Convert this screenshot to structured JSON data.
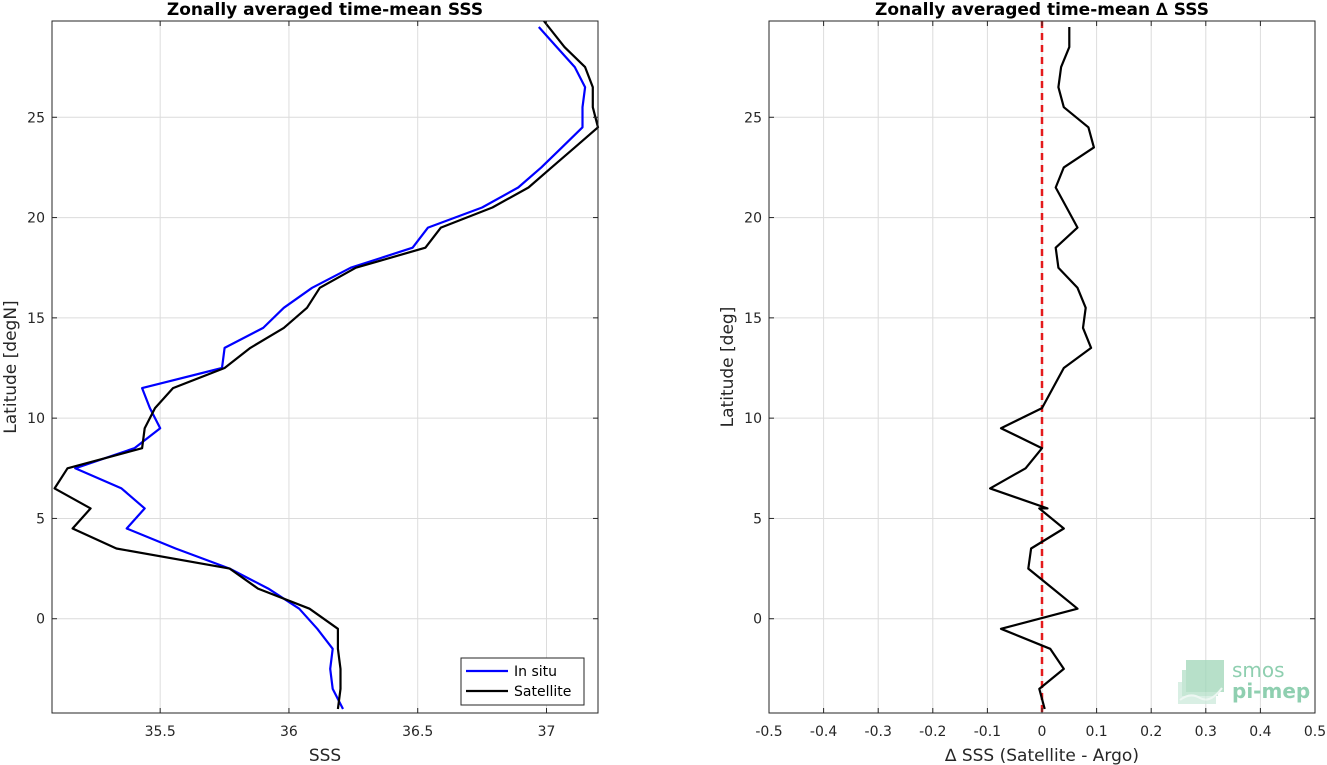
{
  "chart_data": [
    {
      "type": "line",
      "title": "Zonally averaged time-mean SSS",
      "xlabel": "SSS",
      "ylabel": "Latitude [degN]",
      "xlim": [
        35.08,
        37.2
      ],
      "ylim": [
        -4.7,
        29.8
      ],
      "xticks": [
        35.5,
        36,
        36.5,
        37
      ],
      "xtick_labels": [
        "35.5",
        "36",
        "36.5",
        "37"
      ],
      "yticks": [
        0,
        5,
        10,
        15,
        20,
        25
      ],
      "ytick_labels": [
        "0",
        "5",
        "10",
        "15",
        "20",
        "25"
      ],
      "grid": true,
      "legend_position": "bottom-right",
      "series": [
        {
          "name": "In situ",
          "color": "#0000ff",
          "points": [
            [
              36.21,
              -4.5
            ],
            [
              36.17,
              -3.5
            ],
            [
              36.16,
              -2.5
            ],
            [
              36.17,
              -1.5
            ],
            [
              36.11,
              -0.5
            ],
            [
              36.04,
              0.5
            ],
            [
              35.92,
              1.5
            ],
            [
              35.77,
              2.5
            ],
            [
              35.56,
              3.5
            ],
            [
              35.37,
              4.5
            ],
            [
              35.44,
              5.5
            ],
            [
              35.35,
              6.5
            ],
            [
              35.17,
              7.5
            ],
            [
              35.4,
              8.5
            ],
            [
              35.5,
              9.5
            ],
            [
              35.46,
              10.5
            ],
            [
              35.43,
              11.5
            ],
            [
              35.74,
              12.5
            ],
            [
              35.75,
              13.5
            ],
            [
              35.9,
              14.5
            ],
            [
              35.98,
              15.5
            ],
            [
              36.09,
              16.5
            ],
            [
              36.24,
              17.5
            ],
            [
              36.48,
              18.5
            ],
            [
              36.54,
              19.5
            ],
            [
              36.75,
              20.5
            ],
            [
              36.89,
              21.5
            ],
            [
              36.98,
              22.5
            ],
            [
              37.06,
              23.5
            ],
            [
              37.14,
              24.5
            ],
            [
              37.14,
              25.5
            ],
            [
              37.15,
              26.5
            ],
            [
              37.11,
              27.5
            ],
            [
              37.04,
              28.5
            ],
            [
              36.97,
              29.5
            ]
          ]
        },
        {
          "name": "Satellite",
          "color": "#000000",
          "points": [
            [
              36.19,
              -4.5
            ],
            [
              36.2,
              -3.5
            ],
            [
              36.2,
              -2.5
            ],
            [
              36.19,
              -1.5
            ],
            [
              36.19,
              -0.5
            ],
            [
              36.08,
              0.5
            ],
            [
              35.88,
              1.5
            ],
            [
              35.77,
              2.5
            ],
            [
              35.33,
              3.5
            ],
            [
              35.16,
              4.5
            ],
            [
              35.23,
              5.5
            ],
            [
              35.09,
              6.5
            ],
            [
              35.14,
              7.5
            ],
            [
              35.43,
              8.5
            ],
            [
              35.44,
              9.5
            ],
            [
              35.48,
              10.5
            ],
            [
              35.55,
              11.5
            ],
            [
              35.75,
              12.5
            ],
            [
              35.85,
              13.5
            ],
            [
              35.98,
              14.5
            ],
            [
              36.07,
              15.5
            ],
            [
              36.12,
              16.5
            ],
            [
              36.26,
              17.5
            ],
            [
              36.53,
              18.5
            ],
            [
              36.59,
              19.5
            ],
            [
              36.79,
              20.5
            ],
            [
              36.93,
              21.5
            ],
            [
              37.02,
              22.5
            ],
            [
              37.11,
              23.5
            ],
            [
              37.2,
              24.5
            ],
            [
              37.18,
              25.5
            ],
            [
              37.18,
              26.5
            ],
            [
              37.15,
              27.5
            ],
            [
              37.07,
              28.5
            ],
            [
              36.99,
              29.9
            ]
          ]
        }
      ]
    },
    {
      "type": "line",
      "title": "Zonally averaged time-mean ∆ SSS",
      "xlabel": "∆ SSS (Satellite - Argo)",
      "ylabel": "Latitude [deg]",
      "xlim": [
        -0.5,
        0.5
      ],
      "ylim": [
        -4.7,
        29.8
      ],
      "xticks": [
        -0.5,
        -0.4,
        -0.3,
        -0.2,
        -0.1,
        0,
        0.1,
        0.2,
        0.3,
        0.4,
        0.5
      ],
      "xtick_labels": [
        "-0.5",
        "-0.4",
        "-0.3",
        "-0.2",
        "-0.1",
        "0",
        "0.1",
        "0.2",
        "0.3",
        "0.4",
        "0.5"
      ],
      "yticks": [
        0,
        5,
        10,
        15,
        20,
        25
      ],
      "ytick_labels": [
        "0",
        "5",
        "10",
        "15",
        "20",
        "25"
      ],
      "grid": true,
      "reference_line": {
        "x": 0,
        "color": "#e41a1c",
        "style": "dashed"
      },
      "series": [
        {
          "color": "#000000",
          "points": [
            [
              0.005,
              -4.5
            ],
            [
              -0.005,
              -3.5
            ],
            [
              0.04,
              -2.5
            ],
            [
              0.015,
              -1.5
            ],
            [
              -0.075,
              -0.5
            ],
            [
              0.065,
              0.5
            ],
            [
              0.02,
              1.5
            ],
            [
              -0.025,
              2.5
            ],
            [
              -0.02,
              3.5
            ],
            [
              0.04,
              4.5
            ],
            [
              -0.005,
              5.5
            ],
            [
              0.01,
              5.5
            ],
            [
              -0.095,
              6.5
            ],
            [
              -0.03,
              7.5
            ],
            [
              0.0,
              8.5
            ],
            [
              -0.075,
              9.5
            ],
            [
              0.0,
              10.5
            ],
            [
              0.04,
              12.5
            ],
            [
              0.09,
              13.5
            ],
            [
              0.075,
              14.5
            ],
            [
              0.08,
              15.5
            ],
            [
              0.065,
              16.5
            ],
            [
              0.03,
              17.5
            ],
            [
              0.025,
              18.5
            ],
            [
              0.065,
              19.5
            ],
            [
              0.045,
              20.5
            ],
            [
              0.025,
              21.5
            ],
            [
              0.04,
              22.5
            ],
            [
              0.095,
              23.5
            ],
            [
              0.085,
              24.5
            ],
            [
              0.04,
              25.5
            ],
            [
              0.03,
              26.5
            ],
            [
              0.035,
              27.5
            ],
            [
              0.05,
              28.5
            ],
            [
              0.05,
              29.5
            ]
          ]
        }
      ]
    }
  ],
  "logo": {
    "line1": "smos",
    "line2": "pi-mep"
  }
}
